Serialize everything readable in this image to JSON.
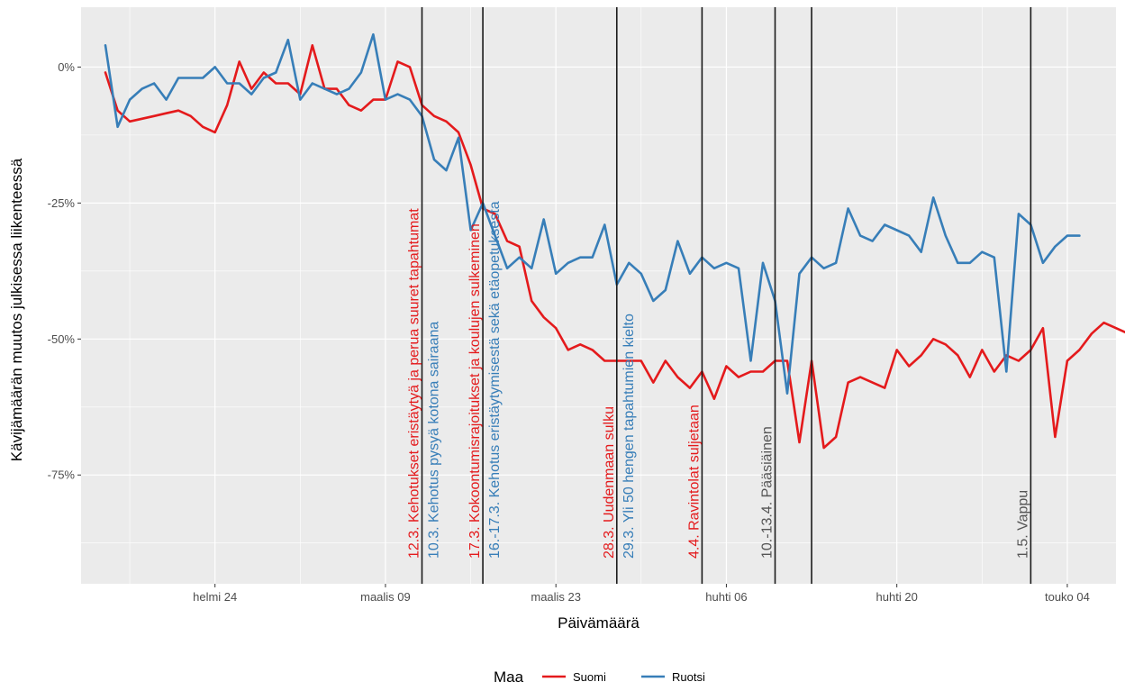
{
  "chart_data": {
    "type": "line",
    "xlabel": "Päivämäärä",
    "ylabel": "Kävijämäärän muutos julkisessa liikenteessä",
    "x_range": [
      "2020-02-13",
      "2020-05-08"
    ],
    "ylim": [
      -95,
      11
    ],
    "y_ticks": [
      {
        "value": 0,
        "label": "0%"
      },
      {
        "value": -25,
        "label": "-25%"
      },
      {
        "value": -50,
        "label": "-50%"
      },
      {
        "value": -75,
        "label": "-75%"
      }
    ],
    "x_ticks": [
      {
        "date": "2020-02-24",
        "label": "helmi 24"
      },
      {
        "date": "2020-03-09",
        "label": "maalis 09"
      },
      {
        "date": "2020-03-23",
        "label": "maalis 23"
      },
      {
        "date": "2020-04-06",
        "label": "huhti 06"
      },
      {
        "date": "2020-04-20",
        "label": "huhti 20"
      },
      {
        "date": "2020-05-04",
        "label": "touko 04"
      }
    ],
    "grid": true,
    "legend": {
      "title": "Maa",
      "position": "bottom"
    },
    "series": [
      {
        "name": "Suomi",
        "color": "#e41a1c",
        "points": [
          [
            "2020-02-15",
            -1
          ],
          [
            "2020-02-16",
            -8
          ],
          [
            "2020-02-17",
            -10
          ],
          [
            "2020-02-18",
            -9.5
          ],
          [
            "2020-02-19",
            -9
          ],
          [
            "2020-02-20",
            -8.5
          ],
          [
            "2020-02-21",
            -8
          ],
          [
            "2020-02-22",
            -9
          ],
          [
            "2020-02-23",
            -11
          ],
          [
            "2020-02-24",
            -12
          ],
          [
            "2020-02-25",
            -7
          ],
          [
            "2020-02-26",
            1
          ],
          [
            "2020-02-27",
            -4
          ],
          [
            "2020-02-28",
            -1
          ],
          [
            "2020-02-29",
            -3
          ],
          [
            "2020-03-01",
            -3
          ],
          [
            "2020-03-02",
            -5
          ],
          [
            "2020-03-03",
            4
          ],
          [
            "2020-03-04",
            -4
          ],
          [
            "2020-03-05",
            -4
          ],
          [
            "2020-03-06",
            -7
          ],
          [
            "2020-03-07",
            -8
          ],
          [
            "2020-03-08",
            -6
          ],
          [
            "2020-03-09",
            -6
          ],
          [
            "2020-03-10",
            1
          ],
          [
            "2020-03-11",
            0
          ],
          [
            "2020-03-12",
            -7
          ],
          [
            "2020-03-13",
            -9
          ],
          [
            "2020-03-14",
            -10
          ],
          [
            "2020-03-15",
            -12
          ],
          [
            "2020-03-16",
            -18
          ],
          [
            "2020-03-17",
            -26
          ],
          [
            "2020-03-18",
            -27
          ],
          [
            "2020-03-19",
            -32
          ],
          [
            "2020-03-20",
            -33
          ],
          [
            "2020-03-21",
            -43
          ],
          [
            "2020-03-22",
            -46
          ],
          [
            "2020-03-23",
            -48
          ],
          [
            "2020-03-24",
            -52
          ],
          [
            "2020-03-25",
            -51
          ],
          [
            "2020-03-26",
            -52
          ],
          [
            "2020-03-27",
            -54
          ],
          [
            "2020-03-28",
            -54
          ],
          [
            "2020-03-29",
            -54
          ],
          [
            "2020-03-30",
            -54
          ],
          [
            "2020-03-31",
            -58
          ],
          [
            "2020-04-01",
            -54
          ],
          [
            "2020-04-02",
            -57
          ],
          [
            "2020-04-03",
            -59
          ],
          [
            "2020-04-04",
            -56
          ],
          [
            "2020-04-05",
            -61
          ],
          [
            "2020-04-06",
            -55
          ],
          [
            "2020-04-07",
            -57
          ],
          [
            "2020-04-08",
            -56
          ],
          [
            "2020-04-09",
            -56
          ],
          [
            "2020-04-10",
            -54
          ],
          [
            "2020-04-11",
            -54
          ],
          [
            "2020-04-12",
            -69
          ],
          [
            "2020-04-13",
            -54
          ],
          [
            "2020-04-14",
            -70
          ],
          [
            "2020-04-15",
            -68
          ],
          [
            "2020-04-16",
            -58
          ],
          [
            "2020-04-17",
            -57
          ],
          [
            "2020-04-18",
            -58
          ],
          [
            "2020-04-19",
            -59
          ],
          [
            "2020-04-20",
            -52
          ],
          [
            "2020-04-21",
            -55
          ],
          [
            "2020-04-22",
            -53
          ],
          [
            "2020-04-23",
            -50
          ],
          [
            "2020-04-24",
            -51
          ],
          [
            "2020-04-25",
            -53
          ],
          [
            "2020-04-26",
            -57
          ],
          [
            "2020-04-27",
            -52
          ],
          [
            "2020-04-28",
            -56
          ],
          [
            "2020-04-29",
            -53
          ],
          [
            "2020-04-30",
            -54
          ],
          [
            "2020-05-01",
            -52
          ],
          [
            "2020-05-02",
            -48
          ],
          [
            "2020-05-03",
            -68
          ],
          [
            "2020-05-04",
            -54
          ],
          [
            "2020-05-05",
            -52
          ],
          [
            "2020-05-06",
            -49
          ],
          [
            "2020-05-07",
            -47
          ],
          [
            "2020-05-08",
            -48
          ],
          [
            "2020-05-09",
            -49
          ]
        ]
      },
      {
        "name": "Ruotsi",
        "color": "#377eb8",
        "points": [
          [
            "2020-02-15",
            4
          ],
          [
            "2020-02-16",
            -11
          ],
          [
            "2020-02-17",
            -6
          ],
          [
            "2020-02-18",
            -4
          ],
          [
            "2020-02-19",
            -3
          ],
          [
            "2020-02-20",
            -6
          ],
          [
            "2020-02-21",
            -2
          ],
          [
            "2020-02-22",
            -2
          ],
          [
            "2020-02-23",
            -2
          ],
          [
            "2020-02-24",
            0
          ],
          [
            "2020-02-25",
            -3
          ],
          [
            "2020-02-26",
            -3
          ],
          [
            "2020-02-27",
            -5
          ],
          [
            "2020-02-28",
            -2
          ],
          [
            "2020-02-29",
            -1
          ],
          [
            "2020-03-01",
            5
          ],
          [
            "2020-03-02",
            -6
          ],
          [
            "2020-03-03",
            -3
          ],
          [
            "2020-03-04",
            -4
          ],
          [
            "2020-03-05",
            -5
          ],
          [
            "2020-03-06",
            -4
          ],
          [
            "2020-03-07",
            -1
          ],
          [
            "2020-03-08",
            6
          ],
          [
            "2020-03-09",
            -6
          ],
          [
            "2020-03-10",
            -5
          ],
          [
            "2020-03-11",
            -6
          ],
          [
            "2020-03-12",
            -9
          ],
          [
            "2020-03-13",
            -17
          ],
          [
            "2020-03-14",
            -19
          ],
          [
            "2020-03-15",
            -13
          ],
          [
            "2020-03-16",
            -30
          ],
          [
            "2020-03-17",
            -25
          ],
          [
            "2020-03-18",
            -31
          ],
          [
            "2020-03-19",
            -37
          ],
          [
            "2020-03-20",
            -35
          ],
          [
            "2020-03-21",
            -37
          ],
          [
            "2020-03-22",
            -28
          ],
          [
            "2020-03-23",
            -38
          ],
          [
            "2020-03-24",
            -36
          ],
          [
            "2020-03-25",
            -35
          ],
          [
            "2020-03-26",
            -35
          ],
          [
            "2020-03-27",
            -29
          ],
          [
            "2020-03-28",
            -40
          ],
          [
            "2020-03-29",
            -36
          ],
          [
            "2020-03-30",
            -38
          ],
          [
            "2020-03-31",
            -43
          ],
          [
            "2020-04-01",
            -41
          ],
          [
            "2020-04-02",
            -32
          ],
          [
            "2020-04-03",
            -38
          ],
          [
            "2020-04-04",
            -35
          ],
          [
            "2020-04-05",
            -37
          ],
          [
            "2020-04-06",
            -36
          ],
          [
            "2020-04-07",
            -37
          ],
          [
            "2020-04-08",
            -54
          ],
          [
            "2020-04-09",
            -36
          ],
          [
            "2020-04-10",
            -43
          ],
          [
            "2020-04-11",
            -60
          ],
          [
            "2020-04-12",
            -38
          ],
          [
            "2020-04-13",
            -35
          ],
          [
            "2020-04-14",
            -37
          ],
          [
            "2020-04-15",
            -36
          ],
          [
            "2020-04-16",
            -26
          ],
          [
            "2020-04-17",
            -31
          ],
          [
            "2020-04-18",
            -32
          ],
          [
            "2020-04-19",
            -29
          ],
          [
            "2020-04-20",
            -30
          ],
          [
            "2020-04-21",
            -31
          ],
          [
            "2020-04-22",
            -34
          ],
          [
            "2020-04-23",
            -24
          ],
          [
            "2020-04-24",
            -31
          ],
          [
            "2020-04-25",
            -36
          ],
          [
            "2020-04-26",
            -36
          ],
          [
            "2020-04-27",
            -34
          ],
          [
            "2020-04-28",
            -35
          ],
          [
            "2020-04-29",
            -56
          ],
          [
            "2020-04-30",
            -27
          ],
          [
            "2020-05-01",
            -29
          ],
          [
            "2020-05-02",
            -36
          ],
          [
            "2020-05-03",
            -33
          ],
          [
            "2020-05-04",
            -31
          ],
          [
            "2020-05-05",
            -31
          ]
        ]
      }
    ],
    "annotations": [
      {
        "date": "2020-03-12",
        "text": "12.3. Kehotukset eristäytyä ja perua suuret tapahtumat",
        "color": "#e41a1c"
      },
      {
        "date": "2020-03-12",
        "text": "10.3. Kehotus pysyä kotona sairaana",
        "color": "#377eb8"
      },
      {
        "date": "2020-03-17",
        "text": "17.3. Kokoontumisrajoitukset ja koulujen sulkeminen",
        "color": "#e41a1c"
      },
      {
        "date": "2020-03-17",
        "text": "16.-17.3. Kehotus eristäytymisestä sekä etäopetuksesta",
        "color": "#377eb8"
      },
      {
        "date": "2020-03-28",
        "text": "28.3. Uudenmaan sulku",
        "color": "#e41a1c"
      },
      {
        "date": "2020-03-28",
        "text": "29.3. Yli 50 hengen tapahtumien kielto",
        "color": "#377eb8"
      },
      {
        "date": "2020-04-04",
        "text": "4.4. Ravintolat suljetaan",
        "color": "#e41a1c"
      },
      {
        "date": "2020-04-10",
        "text": "10.-13.4. Pääsiäinen",
        "color": "#555555"
      },
      {
        "date": "2020-05-01",
        "text": "1.5. Vappu",
        "color": "#555555"
      }
    ],
    "vlines": [
      "2020-03-12",
      "2020-03-17",
      "2020-03-28",
      "2020-04-04",
      "2020-04-10",
      "2020-04-13",
      "2020-05-01"
    ]
  }
}
